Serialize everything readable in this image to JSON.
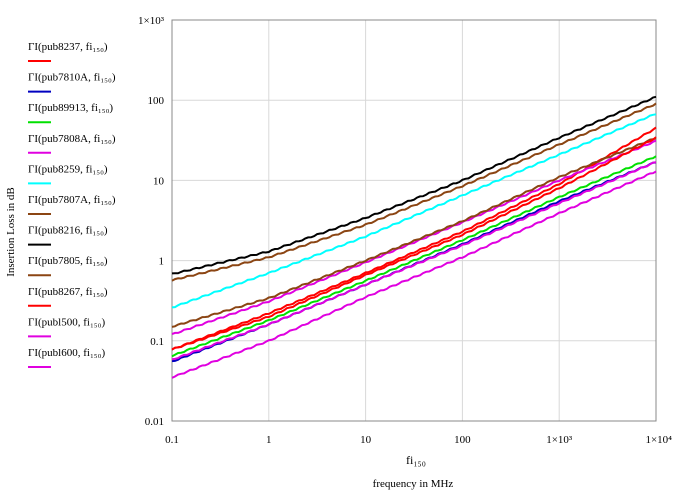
{
  "chart_data": {
    "type": "line",
    "x_scale": "log",
    "y_scale": "log",
    "xlim": [
      0.1,
      10000
    ],
    "ylim": [
      0.01,
      1000
    ],
    "x_tick_labels": [
      {
        "value": 0.1,
        "label": "0.1"
      },
      {
        "value": 1,
        "label": "1"
      },
      {
        "value": 10,
        "label": "10"
      },
      {
        "value": 100,
        "label": "100"
      },
      {
        "value": 1000,
        "label": "1×10³"
      },
      {
        "value": 10000,
        "label": "1×10⁴"
      }
    ],
    "y_tick_labels": [
      {
        "value": 0.01,
        "label": "0.01"
      },
      {
        "value": 0.1,
        "label": "0.1"
      },
      {
        "value": 1,
        "label": "1"
      },
      {
        "value": 10,
        "label": "10"
      },
      {
        "value": 100,
        "label": "100"
      },
      {
        "value": 1000,
        "label": "1×10³"
      }
    ],
    "xlabel_var": "fi₁₅₀",
    "xlabel": "frequency in MHz",
    "ylabel": "Insertion Loss in dB",
    "legend_position": "left",
    "x": [
      0.1,
      1,
      10,
      100,
      1000,
      10000
    ],
    "series": [
      {
        "name": "ΓI(pub8237, fi₁₅₀)",
        "color": "#ff0000",
        "values": [
          0.078,
          0.22,
          0.7,
          2.3,
          9,
          45
        ]
      },
      {
        "name": "ΓI(pub7810A, fi₁₅₀)",
        "color": "#0000c0",
        "values": [
          0.055,
          0.16,
          0.5,
          1.6,
          5.5,
          17
        ]
      },
      {
        "name": "ΓI(pub89913, fi₁₅₀)",
        "color": "#00e000",
        "values": [
          0.065,
          0.18,
          0.56,
          1.8,
          6.2,
          20
        ]
      },
      {
        "name": "ΓI(pub7808A, fi₁₅₀)",
        "color": "#e000e0",
        "values": [
          0.12,
          0.31,
          0.95,
          3.0,
          10,
          31
        ]
      },
      {
        "name": "ΓI(pub8259, fi₁₅₀)",
        "color": "#00ffff",
        "values": [
          0.26,
          0.7,
          2.0,
          6.5,
          21,
          68
        ]
      },
      {
        "name": "ΓI(pub7807A, fi₁₅₀)",
        "color": "#8b4513",
        "values": [
          0.57,
          1.1,
          2.8,
          8.5,
          28,
          90
        ]
      },
      {
        "name": "ΓI(pub8216, fi₁₅₀)",
        "color": "#000000",
        "values": [
          0.68,
          1.3,
          3.4,
          10,
          34,
          110
        ]
      },
      {
        "name": "ΓI(pub7805, fi₁₅₀)",
        "color": "#8b4513",
        "values": [
          0.15,
          0.34,
          1.0,
          3.1,
          11,
          34
        ]
      },
      {
        "name": "ΓI(pub8267, fi₁₅₀)",
        "color": "#ff0000",
        "values": [
          0.078,
          0.2,
          0.66,
          2.1,
          8,
          34
        ]
      },
      {
        "name": "ΓI(publ500, fi₁₅₀)",
        "color": "#e000e0",
        "values": [
          0.058,
          0.16,
          0.5,
          1.55,
          5.2,
          17
        ]
      },
      {
        "name": "ΓI(publ600, fi₁₅₀)",
        "color": "#e000e0",
        "values": [
          0.035,
          0.1,
          0.35,
          1.1,
          3.9,
          13
        ]
      }
    ]
  }
}
